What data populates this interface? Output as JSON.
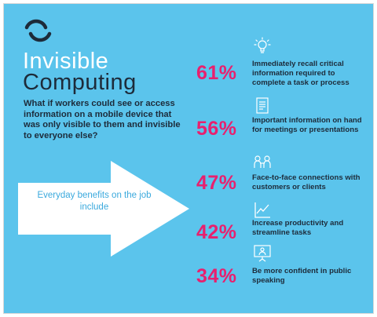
{
  "title": {
    "line1": "Invisible",
    "line2": "Computing"
  },
  "question": "What if workers could see or access information on a mobile device that was only visible to them and invisible to everyone else?",
  "arrow_text": "Everyday benefits on the job include",
  "colors": {
    "background": "#5bc4ec",
    "accent": "#e8206e",
    "dark": "#1d2b3a",
    "arrow_text": "#3aa9dd"
  },
  "stats": [
    {
      "percent": "61%",
      "text": "Immediately recall critical information required to complete a task or process",
      "icon": "lightbulb-icon"
    },
    {
      "percent": "56%",
      "text": "Important information on hand for meetings or presentations",
      "icon": "document-icon"
    },
    {
      "percent": "47%",
      "text": "Face-to-face connections with customers or clients",
      "icon": "people-icon"
    },
    {
      "percent": "42%",
      "text": "Increase productivity and streamline tasks",
      "icon": "line-chart-icon"
    },
    {
      "percent": "34%",
      "text": "Be more confident in public speaking",
      "icon": "presentation-icon"
    }
  ]
}
